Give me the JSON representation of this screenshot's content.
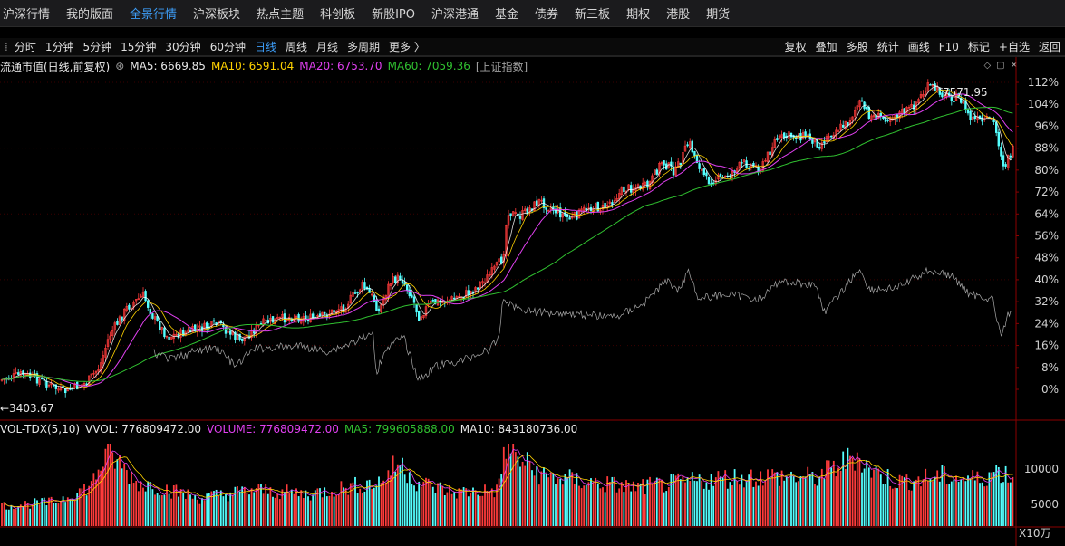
{
  "nav": {
    "items": [
      "沪深行情",
      "我的版面",
      "全景行情",
      "沪深板块",
      "热点主题",
      "科创板",
      "新股IPO",
      "沪深港通",
      "基金",
      "债券",
      "新三板",
      "期权",
      "港股",
      "期货"
    ],
    "active_index": 2
  },
  "periods": {
    "items": [
      "分时",
      "1分钟",
      "5分钟",
      "15分钟",
      "30分钟",
      "60分钟",
      "日线",
      "周线",
      "月线",
      "多周期",
      "更多 〉"
    ],
    "active_index": 6
  },
  "tools": [
    "复权",
    "叠加",
    "多股",
    "统计",
    "画线",
    "F10",
    "标记",
    "+自选",
    "返回"
  ],
  "main_legend": {
    "title": "流通市值(日线,前复权)",
    "ma5": "MA5: 6669.85",
    "ma10": "MA10: 6591.04",
    "ma20": "MA20: 6753.70",
    "ma60": "MA60: 7059.36",
    "overlay": "[上证指数]"
  },
  "vol_legend": {
    "title": "VOL-TDX(5,10)",
    "vvol": "VVOL: 776809472.00",
    "volume": "VOLUME: 776809472.00",
    "ma5": "MA5: 799605888.00",
    "ma10": "MA10: 843180736.00"
  },
  "annotations": {
    "high": "7571.95",
    "low": "←3403.67"
  },
  "icons": {
    "diamond": "diamond-icon",
    "restore": "restore-icon",
    "close": "close-icon"
  },
  "colors": {
    "up": "#ff3b3b",
    "down": "#54ffff",
    "ma5": "#ffffff",
    "ma10": "#ffd200",
    "ma20": "#e040f0",
    "ma60": "#30c030",
    "overlay": "#a8a8a8",
    "grid": "#8b0000"
  },
  "chart_data": {
    "type": "candlestick",
    "y_ticks_right": [
      "112%",
      "104%",
      "96%",
      "88%",
      "80%",
      "72%",
      "64%",
      "56%",
      "48%",
      "40%",
      "32%",
      "24%",
      "16%",
      "8%",
      "0%"
    ],
    "volume_ticks_right": [
      "10000",
      "5000"
    ],
    "volume_unit": "X10万",
    "high": 7571.95,
    "low": 3403.67
  }
}
